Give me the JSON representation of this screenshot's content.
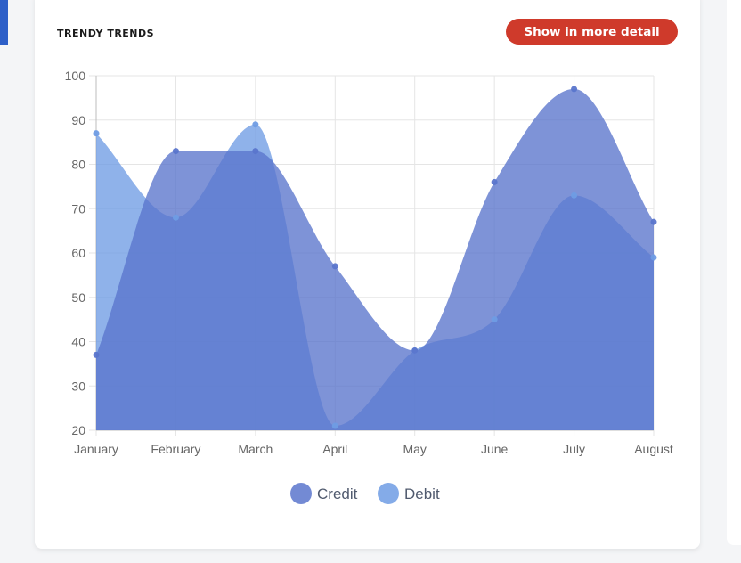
{
  "card": {
    "title": "TRENDY TRENDS",
    "button_label": "Show in more detail"
  },
  "chart_data": {
    "type": "area",
    "categories": [
      "January",
      "February",
      "March",
      "April",
      "May",
      "June",
      "July",
      "August"
    ],
    "ylim": [
      20,
      100
    ],
    "yticks": [
      20,
      30,
      40,
      50,
      60,
      70,
      80,
      90,
      100
    ],
    "grid": true,
    "legend_position": "bottom",
    "curve": "smooth",
    "series": [
      {
        "name": "Credit",
        "values": [
          37,
          83,
          83,
          57,
          38,
          76,
          97,
          67
        ],
        "color": "#5a75cc"
      },
      {
        "name": "Debit",
        "values": [
          87,
          68,
          89,
          21,
          38,
          45,
          73,
          59
        ],
        "color": "#6f9ce4"
      }
    ],
    "title": "",
    "xlabel": "",
    "ylabel": ""
  }
}
